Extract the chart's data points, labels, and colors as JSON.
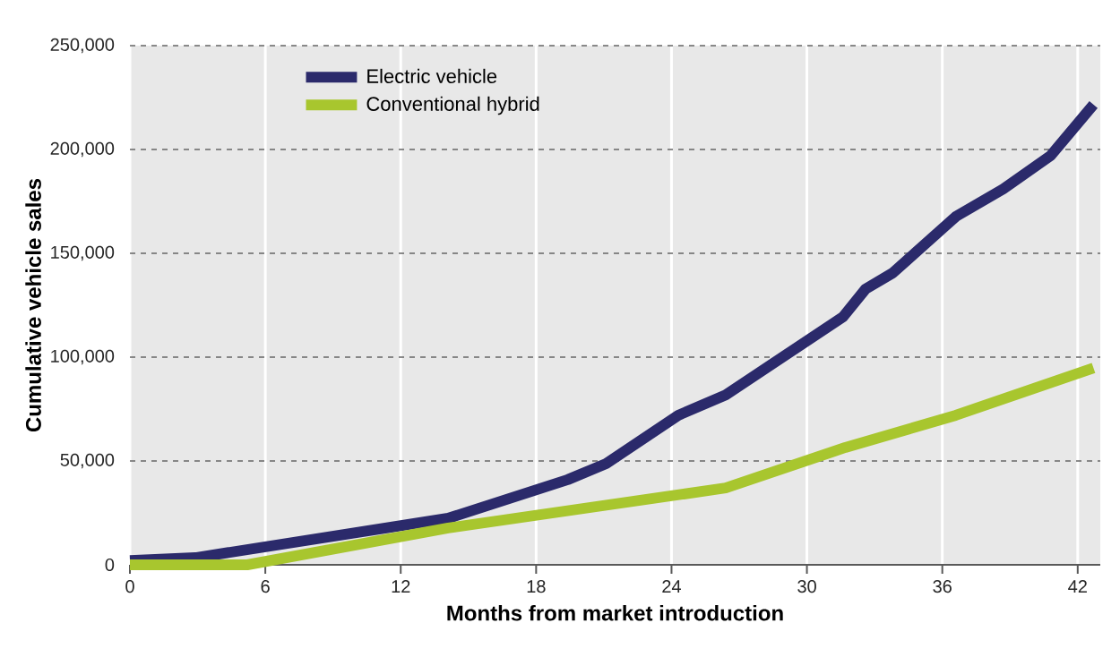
{
  "chart_data": {
    "type": "line",
    "xlabel": "Months from market introduction",
    "ylabel": "Cumulative vehicle sales",
    "xlim": [
      0,
      43
    ],
    "xticks": [
      0,
      6,
      12,
      18,
      24,
      30,
      36,
      42
    ],
    "ylim": [
      0,
      250000
    ],
    "yticks": [
      0,
      {
        "value": 50000,
        "label": "50,000"
      },
      {
        "value": 100000,
        "label": "100,000"
      },
      {
        "value": 150000,
        "label": "150,000"
      },
      {
        "value": 200000,
        "label": "200,000"
      },
      {
        "value": 250000,
        "label": "250,000"
      }
    ],
    "grid": true,
    "legend": "top left",
    "marker": "none",
    "line_style": "solid",
    "series": [
      {
        "name": "Electric vehicle",
        "color": "#2b2a6b",
        "x": [
          0,
          2.9,
          14.1,
          19.4,
          21.1,
          24.3,
          26.4,
          31.6,
          32.6,
          33.8,
          36.6,
          38.7,
          40.8,
          42.7
        ],
        "values": [
          2000,
          3400,
          22400,
          41000,
          48700,
          72000,
          81800,
          119400,
          132800,
          140500,
          167700,
          181000,
          197000,
          221600
        ]
      },
      {
        "name": "Conventional hybrid",
        "color": "#a8c62e",
        "x": [
          0,
          5.2,
          14.1,
          26.4,
          31.7,
          36.6,
          42.7
        ],
        "values": [
          0,
          0,
          17700,
          37000,
          56500,
          72000,
          94800
        ]
      }
    ]
  }
}
